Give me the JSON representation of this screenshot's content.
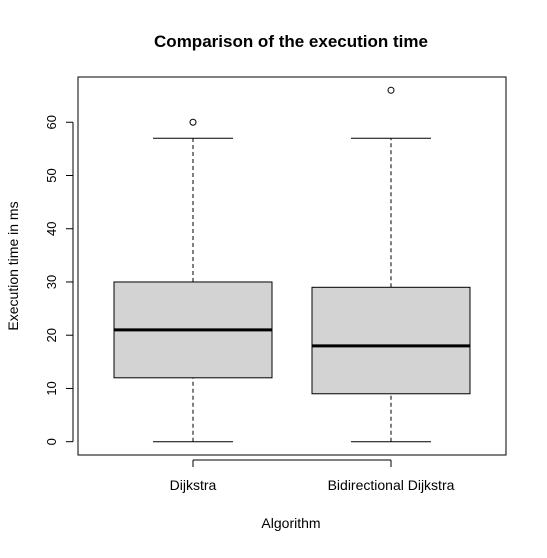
{
  "chart_data": {
    "type": "boxplot",
    "title": "Comparison of the execution time",
    "xlabel": "Algorithm",
    "ylabel": "Execution time in ms",
    "ylim": [
      -2.5,
      68.5
    ],
    "y_ticks": [
      0,
      10,
      20,
      30,
      40,
      50,
      60
    ],
    "categories": [
      "Dijkstra",
      "Bidirectional Dijkstra"
    ],
    "series": [
      {
        "category": "Dijkstra",
        "min": 0,
        "q1": 12,
        "median": 21,
        "q3": 30,
        "max": 57,
        "outliers": [
          60
        ]
      },
      {
        "category": "Bidirectional Dijkstra",
        "min": 0,
        "q1": 9,
        "median": 18,
        "q3": 29,
        "max": 57,
        "outliers": [
          66
        ]
      }
    ],
    "colors": {
      "box_fill": "#d3d3d3",
      "stroke": "#000000"
    },
    "grid": false,
    "legend": "none"
  }
}
